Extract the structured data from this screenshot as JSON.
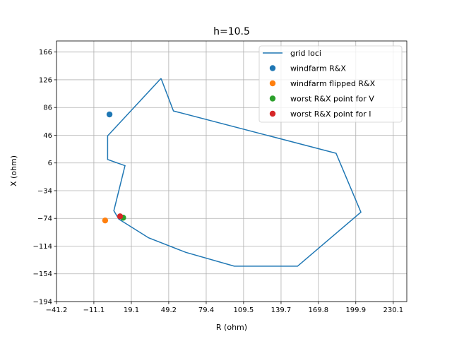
{
  "chart_data": {
    "type": "line",
    "title": "h=10.5",
    "xlabel": "R (ohm)",
    "ylabel": "X (ohm)",
    "xlim": [
      -41.2,
      241.0
    ],
    "ylim": [
      -194,
      182
    ],
    "xticks": [
      -41.2,
      -11.1,
      19.1,
      49.2,
      79.4,
      109.5,
      139.7,
      169.8,
      199.9,
      230.1
    ],
    "xtick_labels": [
      "−41.2",
      "−11.1",
      "19.1",
      "49.2",
      "79.4",
      "109.5",
      "139.7",
      "169.8",
      "199.9",
      "230.1"
    ],
    "yticks": [
      -194,
      -154,
      -114,
      -74,
      -34,
      6,
      46,
      86,
      126,
      166
    ],
    "ytick_labels": [
      "−194",
      "−154",
      "−114",
      "−74",
      "−34",
      "6",
      "46",
      "86",
      "126",
      "166"
    ],
    "grid": true,
    "legend_position": "top-right",
    "series": [
      {
        "name": "grid loci",
        "kind": "line",
        "color": "#1f77b4",
        "points": [
          [
            43,
            128
          ],
          [
            53,
            81
          ],
          [
            184,
            20
          ],
          [
            204,
            -65
          ],
          [
            153,
            -143
          ],
          [
            102,
            -143
          ],
          [
            63,
            -123
          ],
          [
            33,
            -102
          ],
          [
            9,
            -75
          ],
          [
            5,
            -63
          ],
          [
            14,
            2
          ],
          [
            0,
            11
          ],
          [
            0,
            45
          ],
          [
            43,
            128
          ]
        ]
      },
      {
        "name": "windfarm R&X",
        "kind": "scatter",
        "color": "#1f77b4",
        "points": [
          [
            1.5,
            76
          ]
        ]
      },
      {
        "name": "windfarm flipped R&X",
        "kind": "scatter",
        "color": "#ff7f0e",
        "points": [
          [
            -2,
            -77
          ]
        ]
      },
      {
        "name": "worst R&X point for V",
        "kind": "scatter",
        "color": "#2ca02c",
        "points": [
          [
            12.5,
            -73
          ]
        ]
      },
      {
        "name": "worst R&X point for I",
        "kind": "scatter",
        "color": "#d62728",
        "points": [
          [
            10,
            -71
          ]
        ]
      }
    ]
  }
}
